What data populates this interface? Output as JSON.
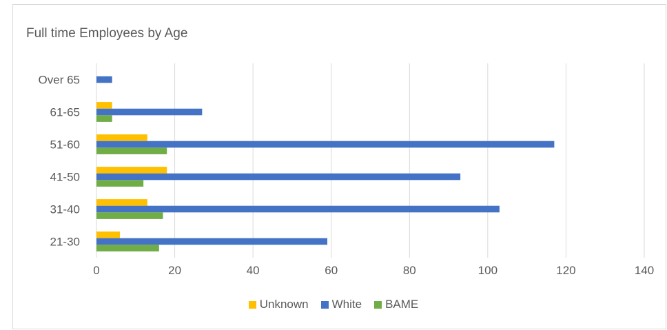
{
  "chart_data": {
    "type": "bar",
    "orientation": "horizontal",
    "title": "Full time Employees by Age",
    "categories": [
      "21-30",
      "31-40",
      "41-50",
      "51-60",
      "61-65",
      "Over 65"
    ],
    "series": [
      {
        "name": "Unknown",
        "color": "#FFC000",
        "values": [
          6,
          13,
          18,
          13,
          4,
          0
        ]
      },
      {
        "name": "White",
        "color": "#4472C4",
        "values": [
          59,
          103,
          93,
          117,
          27,
          4
        ]
      },
      {
        "name": "BAME",
        "color": "#70AD47",
        "values": [
          16,
          17,
          12,
          18,
          4,
          0
        ]
      }
    ],
    "xlim": [
      0,
      140
    ],
    "xticks": [
      0,
      20,
      40,
      60,
      80,
      100,
      120,
      140
    ],
    "grid": true,
    "legend_position": "bottom"
  }
}
